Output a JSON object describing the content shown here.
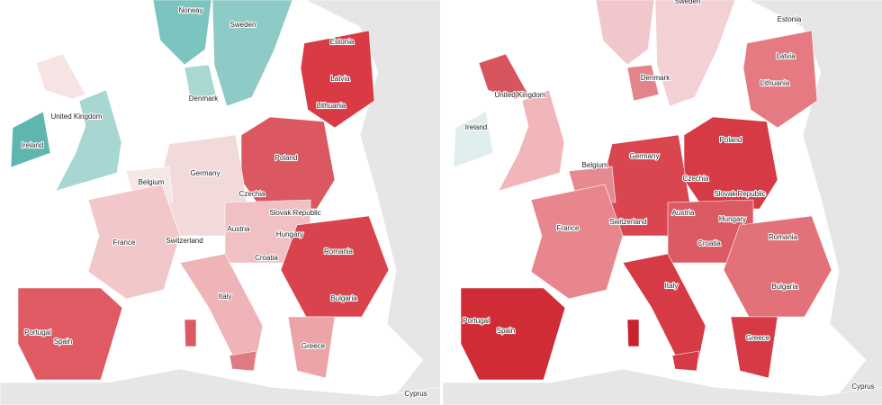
{
  "maps": [
    {
      "labels": [
        "Norway",
        "Sweden",
        "Estonia",
        "Latvia",
        "Lithuania",
        "Denmark",
        "United Kingdom",
        "Ireland",
        "Belgium",
        "Germany",
        "Poland",
        "Czechia",
        "Slovak Republic",
        "France",
        "Switzerland",
        "Austria",
        "Hungary",
        "Romania",
        "Croatia",
        "Italy",
        "Bulgaria",
        "Portugal",
        "Spain",
        "Greece",
        "Cyprus"
      ]
    },
    {
      "labels": [
        "Sweden",
        "Estonia",
        "Latvia",
        "Lithuania",
        "Denmark",
        "United Kingdom",
        "Ireland",
        "Belgium",
        "Germany",
        "Poland",
        "Czechia",
        "Slovak Republic",
        "France",
        "Switzerland",
        "Austria",
        "Hungary",
        "Croatia",
        "Romania",
        "Italy",
        "Bulgaria",
        "Portugal",
        "Spain",
        "Greece",
        "Cyprus"
      ]
    }
  ]
}
